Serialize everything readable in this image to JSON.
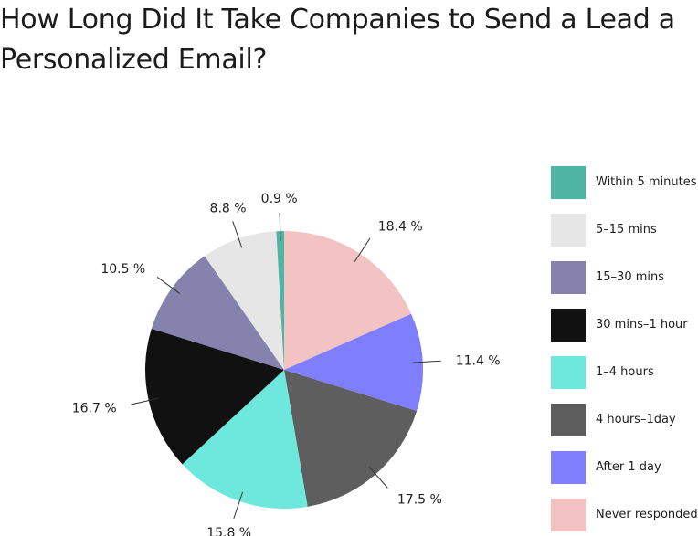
{
  "chart_data": {
    "type": "pie",
    "title": "How Long Did It Take Companies to Send a Lead a Personalized Email?",
    "categories": [
      "Never responded",
      "After 1 day",
      "4 hours–1day",
      "1–4 hours",
      "30 mins–1 hour",
      "15–30 mins",
      "5–15 mins",
      "Within 5 minutes"
    ],
    "values": [
      18.4,
      11.4,
      17.5,
      15.8,
      16.7,
      10.5,
      8.8,
      0.9
    ],
    "labels": [
      "18.4 %",
      "11.4 %",
      "17.5 %",
      "15.8 %",
      "16.7 %",
      "10.5 %",
      "8.8 %",
      "0.9 %"
    ],
    "colors": [
      "#f3c3c4",
      "#7f7ffd",
      "#5e5e5e",
      "#6ee8dc",
      "#111111",
      "#8583ad",
      "#e6e6e6",
      "#4eb5a4"
    ],
    "legend_position": "right",
    "legend": [
      {
        "label": "Within 5 minutes",
        "color": "#4eb5a4"
      },
      {
        "label": "5–15 mins",
        "color": "#e6e6e6"
      },
      {
        "label": "15–30 mins",
        "color": "#8583ad"
      },
      {
        "label": "30 mins–1 hour",
        "color": "#111111"
      },
      {
        "label": "1–4 hours",
        "color": "#6ee8dc"
      },
      {
        "label": "4 hours–1day",
        "color": "#5e5e5e"
      },
      {
        "label": "After 1 day",
        "color": "#7f7ffd"
      },
      {
        "label": "Never responded",
        "color": "#f3c3c4"
      }
    ]
  }
}
